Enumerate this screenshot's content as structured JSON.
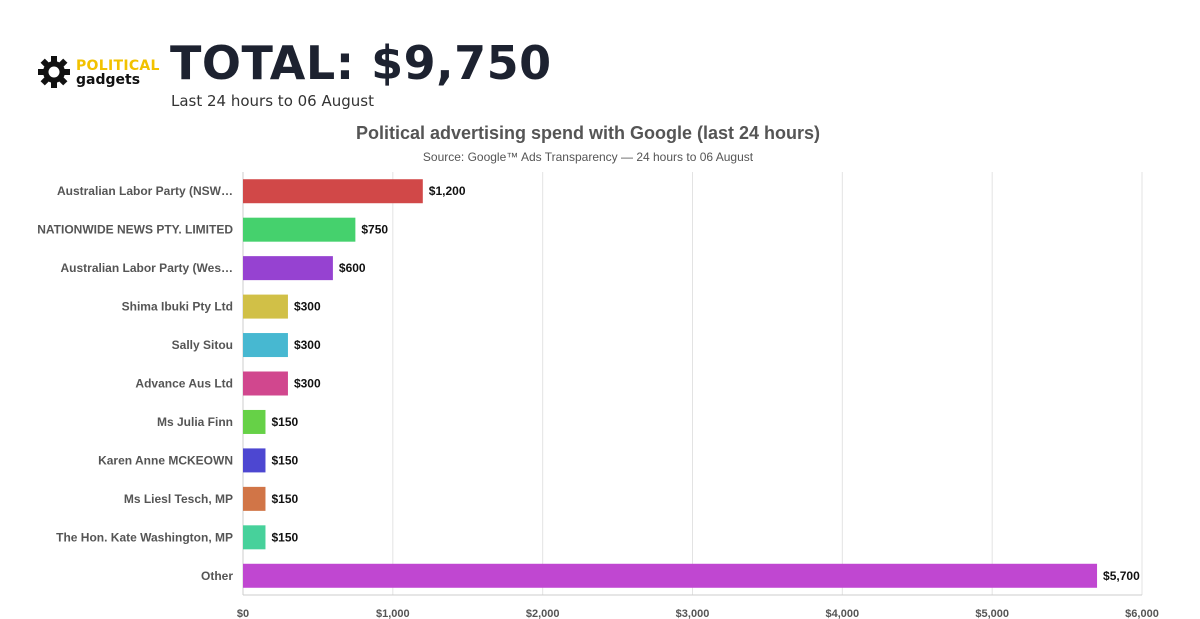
{
  "header": {
    "logo_top": "POLITICAL",
    "logo_bottom": "gadgets",
    "total": "TOTAL: $9,750",
    "subtitle": "Last 24 hours to 06 August"
  },
  "colors": {
    "logo_accent": "#f2c200",
    "title_text": "#1d2230"
  },
  "chart_data": {
    "type": "bar",
    "orientation": "horizontal",
    "title": "Political advertising spend with Google (last 24 hours)",
    "subtitle": "Source: Google™ Ads Transparency — 24 hours to 06 August",
    "categories": [
      "Australian Labor Party (NSW…",
      "NATIONWIDE NEWS PTY. LIMITED",
      "Australian Labor Party (Wes…",
      "Shima Ibuki Pty Ltd",
      "Sally Sitou",
      "Advance Aus Ltd",
      "Ms Julia Finn",
      "Karen Anne MCKEOWN",
      "Ms Liesl Tesch, MP",
      "The Hon. Kate Washington, MP",
      "Other"
    ],
    "values": [
      1200,
      750,
      600,
      300,
      300,
      300,
      150,
      150,
      150,
      150,
      5700
    ],
    "data_labels": [
      "$1,200",
      "$750",
      "$600",
      "$300",
      "$300",
      "$300",
      "$150",
      "$150",
      "$150",
      "$150",
      "$5,700"
    ],
    "bar_colors": [
      "#d14848",
      "#45d16d",
      "#9642d1",
      "#d1c047",
      "#47b8d1",
      "#d1478e",
      "#66d147",
      "#4d47d1",
      "#d17547",
      "#47d19b",
      "#c047d1"
    ],
    "xlim": [
      0,
      6000
    ],
    "xticks": [
      0,
      1000,
      2000,
      3000,
      4000,
      5000,
      6000
    ],
    "xtick_labels": [
      "$0",
      "$1,000",
      "$2,000",
      "$3,000",
      "$4,000",
      "$5,000",
      "$6,000"
    ],
    "grid": true,
    "legend": "none"
  }
}
